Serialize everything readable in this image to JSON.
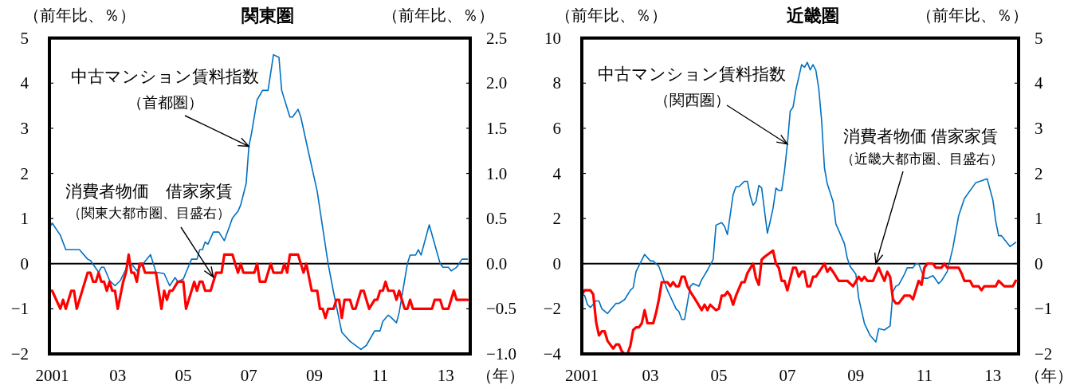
{
  "chart_data": [
    {
      "type": "line",
      "title": "関東圏",
      "ylabel": "（前年比、％）",
      "y2label": "（前年比、％）",
      "xlabel": "（年）",
      "xlim": [
        "2000-12",
        "2013-10"
      ],
      "xticks": [
        {
          "value": "2001-01",
          "label": "2001"
        },
        {
          "value": "2003-01",
          "label": "03"
        },
        {
          "value": "2005-01",
          "label": "05"
        },
        {
          "value": "2007-01",
          "label": "07"
        },
        {
          "value": "2009-01",
          "label": "09"
        },
        {
          "value": "2011-01",
          "label": "11"
        },
        {
          "value": "2013-01",
          "label": "13"
        }
      ],
      "ylim": [
        -2,
        5
      ],
      "yticks": [
        -2,
        -1,
        0,
        1,
        2,
        3,
        4,
        5
      ],
      "y2lim": [
        -1,
        2.5
      ],
      "y2ticks": [
        {
          "value": -1,
          "label": "−1.0"
        },
        {
          "value": -0.5,
          "label": "−0.5"
        },
        {
          "value": 0,
          "label": "0.0"
        },
        {
          "value": 0.5,
          "label": "0.5"
        },
        {
          "value": 1,
          "label": "1.0"
        },
        {
          "value": 1.5,
          "label": "1.5"
        },
        {
          "value": 2,
          "label": "2.0"
        },
        {
          "value": 2.5,
          "label": "2.5"
        }
      ],
      "ref_lines": [
        {
          "axis": "y",
          "value": 0,
          "color": "#000000"
        }
      ],
      "series": [
        {
          "color": "#0070c0",
          "x": [
            "2000-12",
            "2001-01",
            "2001-04",
            "2001-06",
            "2001-11",
            "2002-02",
            "2002-03",
            "2002-06",
            "2002-07",
            "2002-08",
            "2002-10",
            "2002-12",
            "2003-02",
            "2003-05",
            "2003-06",
            "2003-08",
            "2003-10",
            "2004-01",
            "2004-03",
            "2004-06",
            "2004-08",
            "2004-10",
            "2004-11",
            "2005-01",
            "2005-04",
            "2005-06",
            "2005-07",
            "2005-08",
            "2005-09",
            "2005-10",
            "2005-12",
            "2006-02",
            "2006-04",
            "2006-07",
            "2006-09",
            "2006-10",
            "2006-12",
            "2007-01",
            "2007-02",
            "2007-04",
            "2007-06",
            "2007-08",
            "2007-10",
            "2007-12",
            "2008-01",
            "2008-04",
            "2008-05",
            "2008-07",
            "2008-08",
            "2008-11",
            "2009-02",
            "2009-06",
            "2009-08",
            "2009-11",
            "2010-02",
            "2010-06",
            "2010-08",
            "2010-11",
            "2011-01",
            "2011-02",
            "2011-04",
            "2011-05",
            "2011-07",
            "2011-08",
            "2011-11",
            "2011-12",
            "2012-02",
            "2012-03",
            "2012-04",
            "2012-07",
            "2012-11",
            "2012-12",
            "2013-02",
            "2013-03",
            "2013-05",
            "2013-07",
            "2013-09"
          ],
          "values": [
            0.8,
            0.9,
            0.63,
            0.31,
            0.31,
            0.1,
            0.07,
            -0.19,
            -0.08,
            -0.08,
            -0.37,
            -0.49,
            -0.37,
            0,
            0,
            -0.16,
            -0.02,
            0.2,
            -0.19,
            -0.22,
            -0.49,
            -0.31,
            -0.4,
            -0.34,
            0.1,
            0.1,
            0.31,
            0.31,
            0.48,
            0.43,
            0.7,
            0.7,
            0.51,
            1.01,
            1.16,
            1.3,
            1.78,
            2.6,
            2.9,
            3.63,
            3.84,
            3.84,
            4.63,
            4.57,
            3.84,
            3.25,
            3.25,
            3.42,
            3.25,
            2.42,
            1.6,
            0,
            -0.64,
            -1.52,
            -1.72,
            -1.9,
            -1.81,
            -1.49,
            -1.49,
            -1.28,
            -1.14,
            -1.19,
            -1.31,
            -1.08,
            0,
            0.19,
            0.19,
            0.31,
            0.19,
            0.86,
            0,
            -0.08,
            -0.08,
            -0.16,
            -0.08,
            0.1,
            0.1
          ]
        },
        {
          "color": "#ff0000",
          "axis": "y2",
          "x": [
            "2000-12",
            "2001-01",
            "2001-04",
            "2001-05",
            "2001-06",
            "2001-08",
            "2001-09",
            "2001-10",
            "2002-02",
            "2002-03",
            "2002-04",
            "2002-05",
            "2002-06",
            "2002-07",
            "2002-08",
            "2002-09",
            "2002-10",
            "2002-11",
            "2002-12",
            "2003-01",
            "2003-03",
            "2003-04",
            "2003-05",
            "2003-06",
            "2003-07",
            "2003-08",
            "2003-09",
            "2003-10",
            "2003-11",
            "2004-03",
            "2004-05",
            "2004-06",
            "2004-07",
            "2004-08",
            "2004-09",
            "2004-11",
            "2005-01",
            "2005-02",
            "2005-05",
            "2005-06",
            "2005-07",
            "2005-08",
            "2005-09",
            "2005-11",
            "2006-01",
            "2006-03",
            "2006-04",
            "2006-07",
            "2006-09",
            "2006-10",
            "2006-11",
            "2007-03",
            "2007-04",
            "2007-05",
            "2007-07",
            "2007-09",
            "2007-10",
            "2008-01",
            "2008-02",
            "2008-03",
            "2008-04",
            "2008-07",
            "2008-09",
            "2008-10",
            "2008-12",
            "2009-02",
            "2009-03",
            "2009-04",
            "2009-05",
            "2009-06",
            "2009-08",
            "2009-09",
            "2009-10",
            "2009-11",
            "2009-12",
            "2010-02",
            "2010-03",
            "2010-04",
            "2010-06",
            "2010-07",
            "2010-09",
            "2010-11",
            "2010-12",
            "2011-01",
            "2011-02",
            "2011-03",
            "2011-04",
            "2011-06",
            "2011-07",
            "2011-08",
            "2011-10",
            "2011-11",
            "2011-12",
            "2012-01",
            "2012-08",
            "2012-09",
            "2012-11",
            "2012-12",
            "2013-02",
            "2013-04",
            "2013-05",
            "2013-09"
          ],
          "values": [
            -0.3,
            -0.3,
            -0.5,
            -0.4,
            -0.5,
            -0.3,
            -0.3,
            -0.5,
            -0.1,
            -0.1,
            -0.2,
            -0.2,
            -0.1,
            -0.2,
            -0.2,
            -0.3,
            -0.2,
            -0.3,
            -0.3,
            -0.5,
            -0.2,
            -0.1,
            0.1,
            -0.1,
            -0.1,
            -0.2,
            0,
            0,
            -0.1,
            -0.1,
            -0.5,
            -0.3,
            -0.4,
            -0.3,
            -0.3,
            -0.2,
            -0.2,
            -0.5,
            -0.2,
            -0.3,
            -0.2,
            -0.2,
            -0.3,
            -0.3,
            -0.1,
            -0.1,
            0.1,
            0.1,
            -0.1,
            0,
            -0.1,
            -0.1,
            0,
            -0.2,
            -0.2,
            0,
            -0.1,
            -0.1,
            0,
            -0.1,
            0.1,
            0.1,
            -0.1,
            0,
            -0.3,
            -0.3,
            -0.5,
            -0.5,
            -0.6,
            -0.5,
            -0.5,
            -0.4,
            -0.4,
            -0.6,
            -0.4,
            -0.4,
            -0.5,
            -0.5,
            -0.3,
            -0.3,
            -0.5,
            -0.4,
            -0.4,
            -0.3,
            -0.3,
            -0.2,
            -0.3,
            -0.3,
            -0.4,
            -0.3,
            -0.5,
            -0.5,
            -0.4,
            -0.5,
            -0.5,
            -0.4,
            -0.4,
            -0.5,
            -0.5,
            -0.3,
            -0.4,
            -0.4
          ]
        }
      ],
      "annotations": [
        "中古マンション賃料指数",
        {
          "text": "（首都圏）",
          "x": "2007-01",
          "y": 2.6
        },
        "消費者物価　借家家賃",
        {
          "text": "（関東大都市圏、目盛右）",
          "x": "2005-12",
          "y": -0.3
        }
      ]
    },
    {
      "type": "line",
      "title": "近畿圏",
      "ylabel": "（前年比、％）",
      "y2label": "（前年比、％）",
      "xlabel": "（年）",
      "xlim": [
        "2001-01",
        "2013-10"
      ],
      "xticks": [
        {
          "value": "2001-01",
          "label": "2001"
        },
        {
          "value": "2003-01",
          "label": "03"
        },
        {
          "value": "2005-01",
          "label": "05"
        },
        {
          "value": "2007-01",
          "label": "07"
        },
        {
          "value": "2009-01",
          "label": "09"
        },
        {
          "value": "2011-01",
          "label": "11"
        },
        {
          "value": "2013-01",
          "label": "13"
        }
      ],
      "ylim": [
        -4,
        10
      ],
      "yticks": [
        -4,
        -2,
        0,
        2,
        4,
        6,
        8,
        10
      ],
      "y2lim": [
        -2,
        5
      ],
      "y2ticks": [
        -2,
        -1,
        0,
        1,
        2,
        3,
        4,
        5
      ],
      "ref_lines": [
        {
          "axis": "y",
          "value": 0,
          "color": "#000000"
        }
      ],
      "series": [
        {
          "color": "#0070c0",
          "x": [
            "2001-01",
            "2001-02",
            "2001-03",
            "2001-04",
            "2001-06",
            "2001-07",
            "2001-08",
            "2001-10",
            "2002-01",
            "2002-02",
            "2002-04",
            "2002-06",
            "2002-07",
            "2002-08",
            "2002-11",
            "2003-01",
            "2003-02",
            "2003-04",
            "2003-07",
            "2003-10",
            "2003-11",
            "2003-12",
            "2004-01",
            "2004-03",
            "2004-04",
            "2004-06",
            "2004-07",
            "2004-09",
            "2004-11",
            "2004-12",
            "2005-02",
            "2005-03",
            "2005-04",
            "2005-06",
            "2005-07",
            "2005-08",
            "2005-10",
            "2005-11",
            "2005-12",
            "2006-01",
            "2006-02",
            "2006-03",
            "2006-04",
            "2006-06",
            "2006-07",
            "2006-08",
            "2006-09",
            "2006-10",
            "2006-11",
            "2006-12",
            "2007-01",
            "2007-02",
            "2007-03",
            "2007-04",
            "2007-06",
            "2007-07",
            "2007-08",
            "2007-09",
            "2007-10",
            "2007-11",
            "2007-12",
            "2008-01",
            "2008-02",
            "2008-03",
            "2008-05",
            "2008-06",
            "2008-08",
            "2008-09",
            "2008-10",
            "2008-11",
            "2009-01",
            "2009-02",
            "2009-04",
            "2009-06",
            "2009-08",
            "2009-09",
            "2009-11",
            "2010-01",
            "2010-02",
            "2010-03",
            "2010-04",
            "2010-06",
            "2010-07",
            "2010-09",
            "2010-10",
            "2010-11",
            "2011-01",
            "2011-02",
            "2011-04",
            "2011-06",
            "2011-07",
            "2011-09",
            "2011-11",
            "2012-01",
            "2012-03",
            "2012-07",
            "2012-11",
            "2013-01",
            "2013-02",
            "2013-03",
            "2013-04",
            "2013-07",
            "2013-09"
          ],
          "values": [
            -1.35,
            -1.41,
            -1.82,
            -1.94,
            -1.65,
            -1.65,
            -2.0,
            -2.21,
            -1.76,
            -1.76,
            -1.59,
            -1.18,
            -1.06,
            -0.35,
            0.41,
            0.12,
            0.12,
            -0.12,
            -1.18,
            -2.0,
            -2.12,
            -2.47,
            -2.47,
            -1.0,
            -0.88,
            -1.0,
            -0.71,
            -0.29,
            0.18,
            1.71,
            1.82,
            1.65,
            1.29,
            3.06,
            3.41,
            3.41,
            3.65,
            3.65,
            3.0,
            2.59,
            2.76,
            3.47,
            3.35,
            1.35,
            1.88,
            2.47,
            3.35,
            3.24,
            3.24,
            4.12,
            5.29,
            6.76,
            6.94,
            7.71,
            8.82,
            8.7,
            8.92,
            8.59,
            8.82,
            8.56,
            7.76,
            6.35,
            4.24,
            3.53,
            2.76,
            1.76,
            1.18,
            0.88,
            0.24,
            -0.12,
            -0.47,
            -1.53,
            -2.65,
            -3.18,
            -3.47,
            -2.88,
            -2.94,
            -2.76,
            -1.24,
            -1.0,
            -0.94,
            -0.47,
            -0.18,
            -0.18,
            0,
            0,
            -0.65,
            -0.65,
            -0.53,
            -0.88,
            -0.76,
            -0.35,
            0.71,
            2.12,
            2.88,
            3.59,
            3.76,
            2.82,
            1.88,
            1.24,
            1.24,
            0.76,
            0.94
          ]
        },
        {
          "color": "#ff0000",
          "axis": "y2",
          "x": [
            "2001-01",
            "2001-02",
            "2001-04",
            "2001-05",
            "2001-06",
            "2001-07",
            "2001-08",
            "2001-09",
            "2001-10",
            "2001-12",
            "2002-01",
            "2002-02",
            "2002-03",
            "2002-04",
            "2002-05",
            "2002-06",
            "2002-07",
            "2002-08",
            "2002-09",
            "2002-10",
            "2002-11",
            "2002-12",
            "2003-02",
            "2003-03",
            "2003-04",
            "2003-05",
            "2003-07",
            "2003-08",
            "2003-09",
            "2003-10",
            "2003-11",
            "2003-12",
            "2004-01",
            "2004-02",
            "2004-03",
            "2004-05",
            "2004-07",
            "2004-08",
            "2004-09",
            "2004-10",
            "2004-12",
            "2005-01",
            "2005-02",
            "2005-03",
            "2005-04",
            "2005-05",
            "2005-06",
            "2005-07",
            "2005-09",
            "2005-10",
            "2005-11",
            "2006-01",
            "2006-02",
            "2006-03",
            "2006-04",
            "2006-05",
            "2006-08",
            "2006-09",
            "2006-10",
            "2006-11",
            "2006-12",
            "2007-01",
            "2007-03",
            "2007-04",
            "2007-05",
            "2007-06",
            "2007-07",
            "2007-08",
            "2007-09",
            "2007-10",
            "2007-11",
            "2008-02",
            "2008-03",
            "2008-04",
            "2008-05",
            "2008-07",
            "2008-10",
            "2008-12",
            "2009-02",
            "2009-03",
            "2009-04",
            "2009-05",
            "2009-07",
            "2009-09",
            "2009-10",
            "2009-11",
            "2009-12",
            "2010-01",
            "2010-02",
            "2010-03",
            "2010-04",
            "2010-06",
            "2010-08",
            "2010-09",
            "2010-11",
            "2010-12",
            "2011-01",
            "2011-02",
            "2011-04",
            "2011-05",
            "2011-07",
            "2011-08",
            "2011-09",
            "2012-01",
            "2012-02",
            "2012-03",
            "2012-05",
            "2012-06",
            "2012-08",
            "2012-09",
            "2012-10",
            "2013-02",
            "2013-03",
            "2013-05",
            "2013-08",
            "2013-09"
          ],
          "values": [
            -0.68,
            -0.59,
            -0.59,
            -0.68,
            -1.29,
            -1.59,
            -1.5,
            -1.5,
            -1.71,
            -1.88,
            -1.79,
            -1.79,
            -1.94,
            -2.0,
            -2.0,
            -1.82,
            -1.47,
            -1.41,
            -1.41,
            -1.32,
            -1.03,
            -1.32,
            -1.32,
            -1.09,
            -0.79,
            -0.41,
            -0.41,
            -0.5,
            -0.41,
            -0.5,
            -0.5,
            -0.29,
            -0.29,
            -0.5,
            -0.62,
            -0.82,
            -1.03,
            -0.91,
            -1.03,
            -0.91,
            -1.03,
            -1.0,
            -0.71,
            -0.71,
            -0.62,
            -0.71,
            -0.91,
            -0.71,
            -0.41,
            -0.41,
            -0.21,
            0,
            -0.32,
            -0.47,
            0.09,
            0.15,
            0.29,
            0,
            -0.09,
            -0.38,
            -0.38,
            -0.59,
            -0.09,
            -0.09,
            -0.29,
            -0.18,
            -0.18,
            -0.5,
            -0.5,
            -0.29,
            -0.29,
            0,
            -0.18,
            -0.09,
            -0.18,
            -0.38,
            -0.38,
            -0.5,
            -0.29,
            -0.38,
            -0.29,
            -0.38,
            -0.38,
            -0.09,
            -0.24,
            -0.38,
            -0.18,
            -0.29,
            -0.79,
            -0.88,
            -0.88,
            -0.71,
            -0.71,
            -0.79,
            -0.38,
            -0.47,
            -0.09,
            0,
            0,
            -0.09,
            -0.09,
            0,
            -0.09,
            -0.09,
            -0.21,
            -0.38,
            -0.38,
            -0.5,
            -0.5,
            -0.59,
            -0.5,
            -0.5,
            -0.38,
            -0.5,
            -0.5,
            -0.38
          ]
        }
      ],
      "annotations": [
        "中古マンション賃料指数",
        {
          "text": "（関西圏）",
          "x": "2007-01",
          "y": 5.3
        },
        "消費者物価 借家家賃",
        {
          "text": "（近畿大都市圏、目盛右）",
          "x": "2009-08",
          "y": 0
        }
      ]
    }
  ]
}
